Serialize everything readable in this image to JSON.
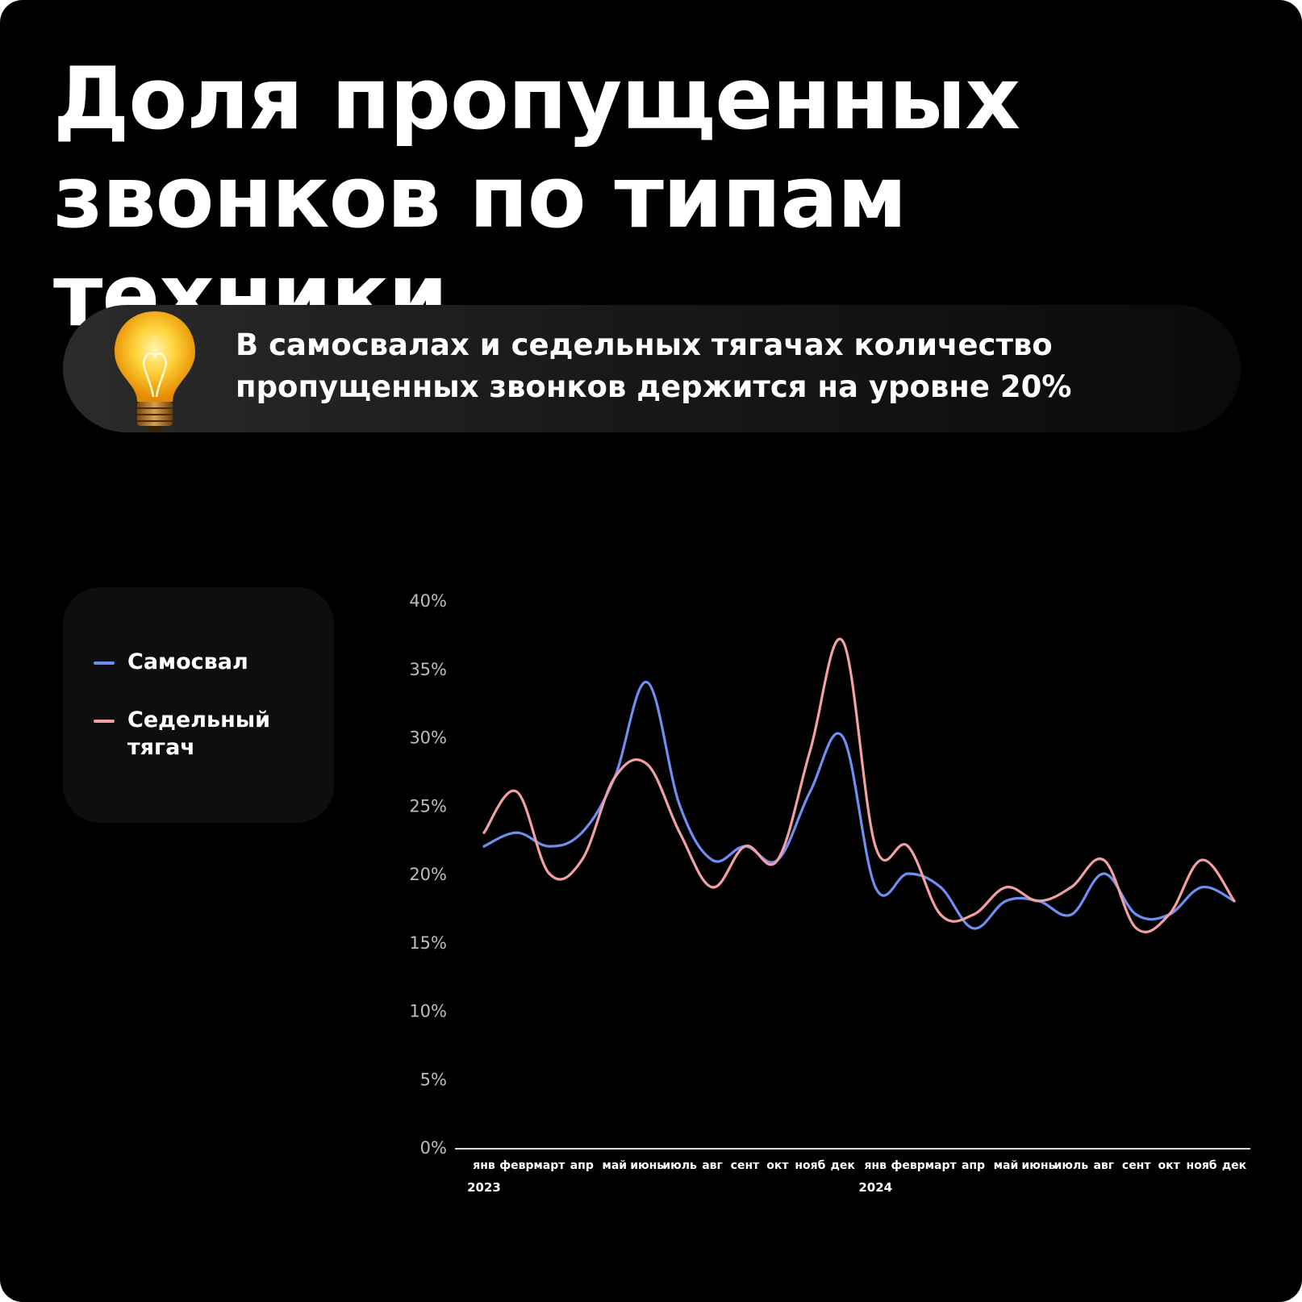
{
  "title": {
    "line1": "Доля пропущенных",
    "line2": "звонков по типам техники"
  },
  "callout": {
    "icon": "lightbulb-icon",
    "line1": "В самосвалах и седельных тягачах количество",
    "line2": "пропущенных звонков держится на уровне 20%"
  },
  "legend": {
    "items": [
      {
        "label": "Самосвал",
        "color": "#6f8ef0"
      },
      {
        "label": "Седельный тягач",
        "color": "#f2a0a2"
      }
    ]
  },
  "colors": {
    "background": "#000000",
    "text": "#ffffff",
    "axis_text": "#bdbdbd",
    "axis_line": "#d9d9d9"
  },
  "chart_data": {
    "type": "line",
    "categories": [
      "янв",
      "февр",
      "март",
      "апр",
      "май",
      "июнь",
      "июль",
      "авг",
      "сент",
      "окт",
      "нояб",
      "дек",
      "янв",
      "февр",
      "март",
      "апр",
      "май",
      "июнь",
      "июль",
      "авг",
      "сент",
      "окт",
      "нояб",
      "дек"
    ],
    "year_labels": [
      {
        "label": "2023",
        "index": 0
      },
      {
        "label": "2024",
        "index": 12
      }
    ],
    "series": [
      {
        "name": "Самосвал",
        "color": "#6f8ef0",
        "values": [
          22,
          23,
          22,
          23,
          27,
          34,
          25,
          21,
          22,
          21,
          26,
          30,
          19,
          20,
          19,
          16,
          18,
          18,
          17,
          20,
          17,
          17,
          19,
          18
        ]
      },
      {
        "name": "Седельный тягач",
        "color": "#f2a0a2",
        "values": [
          23,
          26,
          20,
          21,
          27,
          28,
          23,
          19,
          22,
          21,
          29,
          37,
          22,
          22,
          17,
          17,
          19,
          18,
          19,
          21,
          16,
          17,
          21,
          18
        ]
      }
    ],
    "y_ticks": [
      0,
      5,
      10,
      15,
      20,
      25,
      30,
      35,
      40
    ],
    "y_tick_labels": [
      "0%",
      "5%",
      "10%",
      "15%",
      "20%",
      "25%",
      "30%",
      "35%",
      "40%"
    ],
    "ylim": [
      0,
      40
    ],
    "grid": false,
    "legend_position": "left",
    "smooth": true
  }
}
